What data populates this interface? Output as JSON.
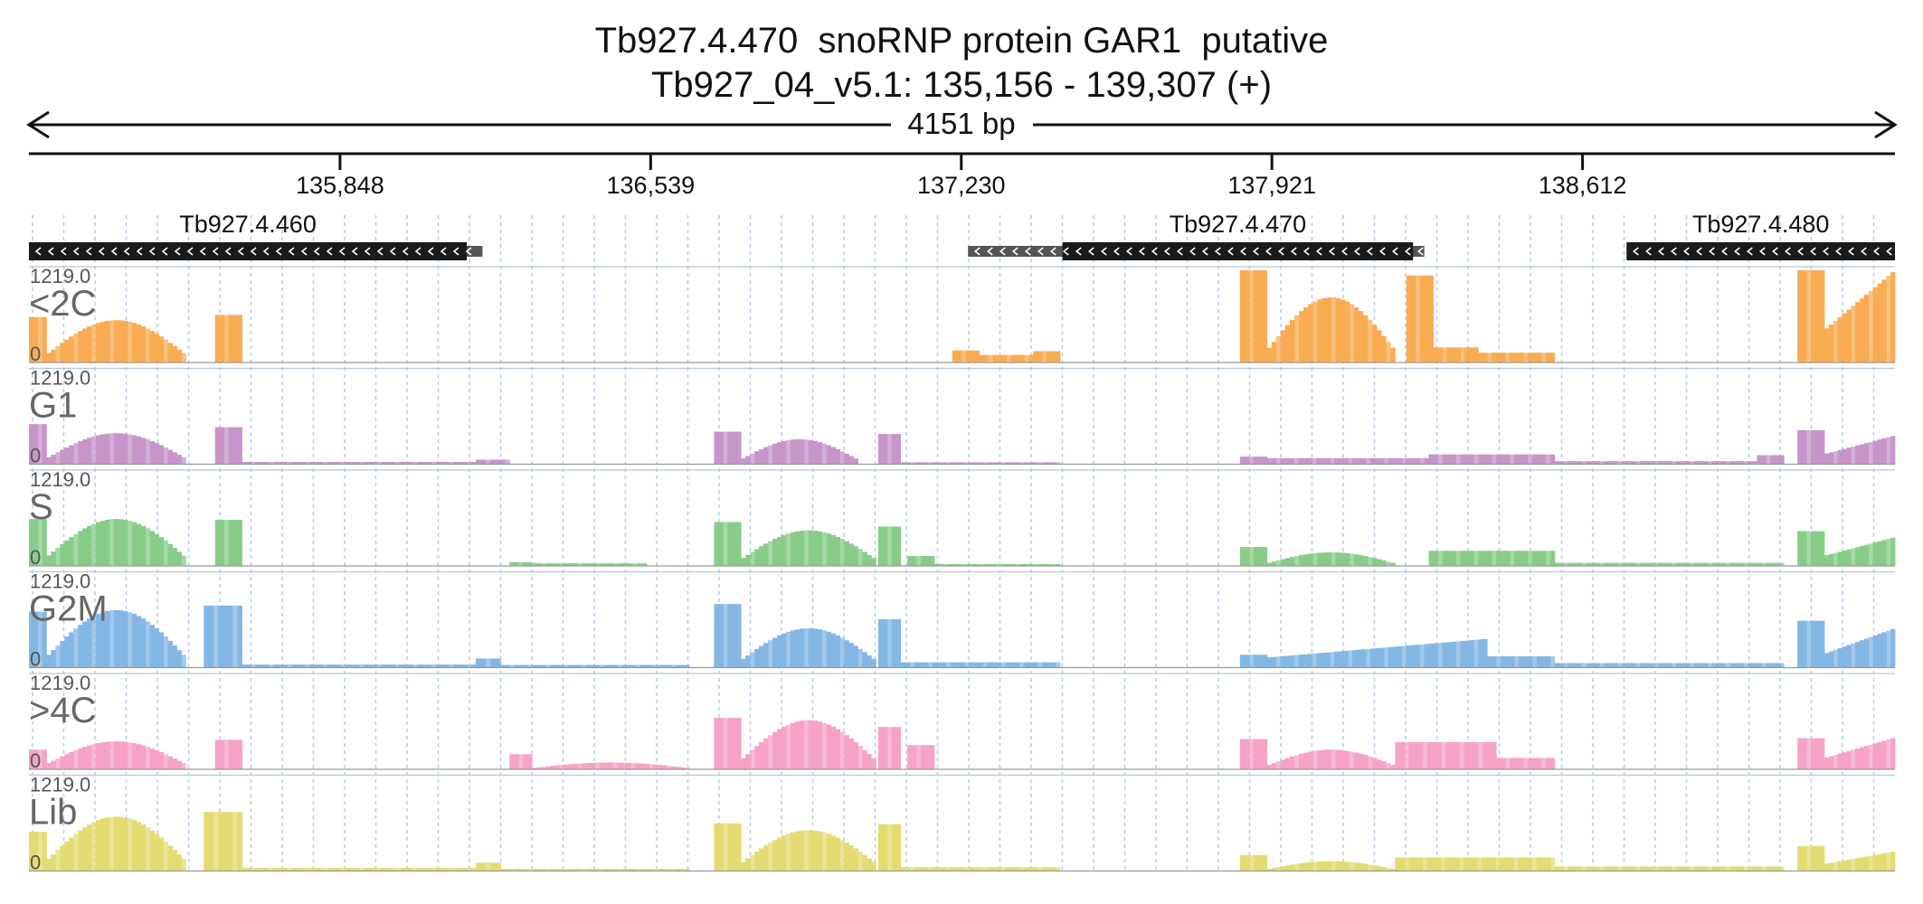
{
  "chart_data": {
    "type": "area",
    "title": "Tb927.4.470  snoRNP protein GAR1  putative",
    "subtitle": "Tb927_04_v5.1: 135,156 - 139,307 (+)",
    "span_label": "4151 bp",
    "region": {
      "chrom": "Tb927_04_v5.1",
      "start": 135156,
      "end": 139307,
      "strand": "+"
    },
    "ruler_ticks": [
      135848,
      136539,
      137230,
      137921,
      138612
    ],
    "ruler_tick_labels": [
      "135,848",
      "136,539",
      "137,230",
      "137,921",
      "138,612"
    ],
    "genes": [
      {
        "name": "Tb927.4.460",
        "start": 135156,
        "end": 136165,
        "cds_start": 135156,
        "cds_end": 136130,
        "strand": "-"
      },
      {
        "name": "Tb927.4.470",
        "start": 137245,
        "end": 138260,
        "cds_start": 137455,
        "cds_end": 138235,
        "strand": "-"
      },
      {
        "name": "Tb927.4.480",
        "start": 138710,
        "end": 139307,
        "cds_start": 138710,
        "cds_end": 139400,
        "strand": "-"
      }
    ],
    "track_max": "1219.0",
    "track_min": "0",
    "ylim": [
      0,
      1219
    ],
    "tracks": [
      {
        "name": "<2C",
        "color": "#f9a84b",
        "segments": [
          {
            "start": 135156,
            "end": 135195,
            "profile": "flat",
            "peak": 600
          },
          {
            "start": 135195,
            "end": 135505,
            "profile": "dome",
            "peak": 560
          },
          {
            "start": 135570,
            "end": 135630,
            "profile": "flat",
            "peak": 630
          },
          {
            "start": 137210,
            "end": 137270,
            "profile": "flat",
            "peak": 160
          },
          {
            "start": 137270,
            "end": 137390,
            "profile": "flat",
            "peak": 100
          },
          {
            "start": 137390,
            "end": 137450,
            "profile": "flat",
            "peak": 150
          },
          {
            "start": 137850,
            "end": 137910,
            "profile": "flat",
            "peak": 1219
          },
          {
            "start": 137910,
            "end": 138195,
            "profile": "dome",
            "peak": 860
          },
          {
            "start": 138220,
            "end": 138280,
            "profile": "flat",
            "peak": 1150
          },
          {
            "start": 138280,
            "end": 138380,
            "profile": "flat",
            "peak": 200
          },
          {
            "start": 138380,
            "end": 138550,
            "profile": "flat",
            "peak": 130
          },
          {
            "start": 139090,
            "end": 139150,
            "profile": "flat",
            "peak": 1219
          },
          {
            "start": 139150,
            "end": 139307,
            "profile": "ramp",
            "peak": 1219
          }
        ]
      },
      {
        "name": "G1",
        "color": "#c58fc7",
        "segments": [
          {
            "start": 135156,
            "end": 135195,
            "profile": "flat",
            "peak": 530
          },
          {
            "start": 135195,
            "end": 135505,
            "profile": "dome",
            "peak": 410
          },
          {
            "start": 135570,
            "end": 135630,
            "profile": "flat",
            "peak": 490
          },
          {
            "start": 135630,
            "end": 136150,
            "profile": "flat",
            "peak": 30
          },
          {
            "start": 136150,
            "end": 136225,
            "profile": "flat",
            "peak": 60
          },
          {
            "start": 136680,
            "end": 136740,
            "profile": "flat",
            "peak": 430
          },
          {
            "start": 136740,
            "end": 137000,
            "profile": "dome",
            "peak": 330
          },
          {
            "start": 137045,
            "end": 137095,
            "profile": "flat",
            "peak": 400
          },
          {
            "start": 137095,
            "end": 137450,
            "profile": "flat",
            "peak": 25
          },
          {
            "start": 137850,
            "end": 137910,
            "profile": "flat",
            "peak": 100
          },
          {
            "start": 137910,
            "end": 138270,
            "profile": "flat",
            "peak": 80
          },
          {
            "start": 138270,
            "end": 138550,
            "profile": "flat",
            "peak": 130
          },
          {
            "start": 138550,
            "end": 139000,
            "profile": "flat",
            "peak": 40
          },
          {
            "start": 139000,
            "end": 139060,
            "profile": "flat",
            "peak": 120
          },
          {
            "start": 139090,
            "end": 139150,
            "profile": "flat",
            "peak": 450
          },
          {
            "start": 139150,
            "end": 139307,
            "profile": "ramp",
            "peak": 380
          }
        ]
      },
      {
        "name": "S",
        "color": "#83c983",
        "segments": [
          {
            "start": 135156,
            "end": 135195,
            "profile": "flat",
            "peak": 620
          },
          {
            "start": 135195,
            "end": 135505,
            "profile": "dome",
            "peak": 620
          },
          {
            "start": 135570,
            "end": 135630,
            "profile": "flat",
            "peak": 610
          },
          {
            "start": 136225,
            "end": 136275,
            "profile": "flat",
            "peak": 50
          },
          {
            "start": 136275,
            "end": 136530,
            "profile": "flat",
            "peak": 35
          },
          {
            "start": 136680,
            "end": 136740,
            "profile": "flat",
            "peak": 580
          },
          {
            "start": 136740,
            "end": 137040,
            "profile": "dome",
            "peak": 470
          },
          {
            "start": 137045,
            "end": 137095,
            "profile": "flat",
            "peak": 520
          },
          {
            "start": 137110,
            "end": 137170,
            "profile": "flat",
            "peak": 130
          },
          {
            "start": 137170,
            "end": 137450,
            "profile": "flat",
            "peak": 25
          },
          {
            "start": 137850,
            "end": 137910,
            "profile": "flat",
            "peak": 250
          },
          {
            "start": 137910,
            "end": 138195,
            "profile": "dome",
            "peak": 180
          },
          {
            "start": 138270,
            "end": 138550,
            "profile": "flat",
            "peak": 200
          },
          {
            "start": 138550,
            "end": 139060,
            "profile": "flat",
            "peak": 40
          },
          {
            "start": 139090,
            "end": 139150,
            "profile": "flat",
            "peak": 460
          },
          {
            "start": 139150,
            "end": 139307,
            "profile": "ramp",
            "peak": 380
          }
        ]
      },
      {
        "name": "G2M",
        "color": "#7db3e2",
        "segments": [
          {
            "start": 135156,
            "end": 135195,
            "profile": "flat",
            "peak": 740
          },
          {
            "start": 135195,
            "end": 135505,
            "profile": "dome",
            "peak": 760
          },
          {
            "start": 135545,
            "end": 135630,
            "profile": "flat",
            "peak": 820
          },
          {
            "start": 135630,
            "end": 136150,
            "profile": "flat",
            "peak": 40
          },
          {
            "start": 136150,
            "end": 136205,
            "profile": "flat",
            "peak": 120
          },
          {
            "start": 136205,
            "end": 136625,
            "profile": "flat",
            "peak": 35
          },
          {
            "start": 136680,
            "end": 136740,
            "profile": "flat",
            "peak": 840
          },
          {
            "start": 136740,
            "end": 137040,
            "profile": "dome",
            "peak": 520
          },
          {
            "start": 137045,
            "end": 137095,
            "profile": "flat",
            "peak": 640
          },
          {
            "start": 137095,
            "end": 137450,
            "profile": "flat",
            "peak": 70
          },
          {
            "start": 137850,
            "end": 137910,
            "profile": "flat",
            "peak": 170
          },
          {
            "start": 137910,
            "end": 138400,
            "profile": "ramp",
            "peak": 380
          },
          {
            "start": 138400,
            "end": 138550,
            "profile": "flat",
            "peak": 150
          },
          {
            "start": 138550,
            "end": 139060,
            "profile": "flat",
            "peak": 60
          },
          {
            "start": 139090,
            "end": 139150,
            "profile": "flat",
            "peak": 620
          },
          {
            "start": 139150,
            "end": 139307,
            "profile": "ramp",
            "peak": 520
          }
        ]
      },
      {
        "name": ">4C",
        "color": "#f59ec4",
        "segments": [
          {
            "start": 135156,
            "end": 135195,
            "profile": "flat",
            "peak": 260
          },
          {
            "start": 135195,
            "end": 135505,
            "profile": "dome",
            "peak": 370
          },
          {
            "start": 135570,
            "end": 135630,
            "profile": "flat",
            "peak": 390
          },
          {
            "start": 136225,
            "end": 136275,
            "profile": "flat",
            "peak": 200
          },
          {
            "start": 136275,
            "end": 136625,
            "profile": "dome",
            "peak": 90
          },
          {
            "start": 136680,
            "end": 136740,
            "profile": "flat",
            "peak": 680
          },
          {
            "start": 136740,
            "end": 137040,
            "profile": "dome",
            "peak": 650
          },
          {
            "start": 137045,
            "end": 137095,
            "profile": "flat",
            "peak": 560
          },
          {
            "start": 137110,
            "end": 137170,
            "profile": "flat",
            "peak": 320
          },
          {
            "start": 137850,
            "end": 137910,
            "profile": "flat",
            "peak": 400
          },
          {
            "start": 137910,
            "end": 138195,
            "profile": "dome",
            "peak": 260
          },
          {
            "start": 138195,
            "end": 138420,
            "profile": "flat",
            "peak": 360
          },
          {
            "start": 138420,
            "end": 138550,
            "profile": "flat",
            "peak": 150
          },
          {
            "start": 139090,
            "end": 139150,
            "profile": "flat",
            "peak": 410
          },
          {
            "start": 139150,
            "end": 139307,
            "profile": "ramp",
            "peak": 420
          }
        ]
      },
      {
        "name": "Lib",
        "color": "#e3d96b",
        "segments": [
          {
            "start": 135156,
            "end": 135195,
            "profile": "flat",
            "peak": 520
          },
          {
            "start": 135195,
            "end": 135505,
            "profile": "dome",
            "peak": 720
          },
          {
            "start": 135545,
            "end": 135630,
            "profile": "flat",
            "peak": 780
          },
          {
            "start": 135630,
            "end": 136150,
            "profile": "flat",
            "peak": 40
          },
          {
            "start": 136150,
            "end": 136205,
            "profile": "flat",
            "peak": 110
          },
          {
            "start": 136205,
            "end": 136625,
            "profile": "flat",
            "peak": 30
          },
          {
            "start": 136680,
            "end": 136740,
            "profile": "flat",
            "peak": 630
          },
          {
            "start": 136740,
            "end": 137040,
            "profile": "dome",
            "peak": 540
          },
          {
            "start": 137045,
            "end": 137095,
            "profile": "flat",
            "peak": 620
          },
          {
            "start": 137095,
            "end": 137450,
            "profile": "flat",
            "peak": 50
          },
          {
            "start": 137850,
            "end": 137910,
            "profile": "flat",
            "peak": 210
          },
          {
            "start": 137910,
            "end": 138195,
            "profile": "dome",
            "peak": 130
          },
          {
            "start": 138195,
            "end": 138550,
            "profile": "flat",
            "peak": 180
          },
          {
            "start": 138550,
            "end": 139060,
            "profile": "flat",
            "peak": 60
          },
          {
            "start": 139090,
            "end": 139150,
            "profile": "flat",
            "peak": 330
          },
          {
            "start": 139150,
            "end": 139307,
            "profile": "ramp",
            "peak": 260
          }
        ]
      }
    ]
  }
}
